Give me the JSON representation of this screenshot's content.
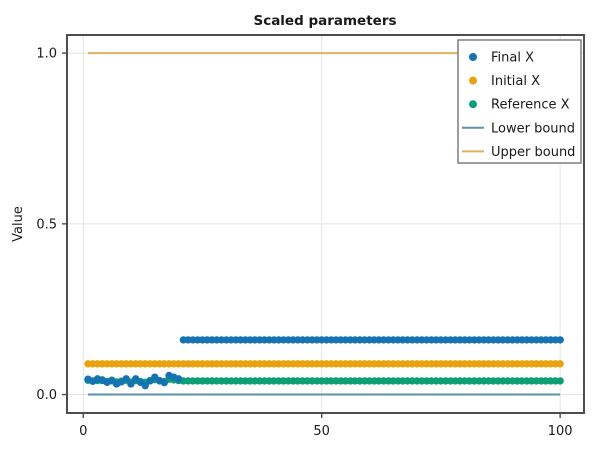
{
  "chart_data": {
    "type": "scatter",
    "title": "Scaled parameters",
    "xlabel": "",
    "ylabel": "Value",
    "xlim": [
      -3.4,
      105.0
    ],
    "ylim": [
      -0.054,
      1.053
    ],
    "x_ticks": [
      0,
      50,
      100
    ],
    "x_tick_labels": [
      "0",
      "50",
      "100"
    ],
    "y_ticks": [
      0,
      0.5,
      1
    ],
    "y_tick_labels": [
      "0.0",
      "0.5",
      "1.0"
    ],
    "grid": true,
    "x_range": {
      "from": 1,
      "to": 100,
      "step": 1
    },
    "series": [
      {
        "name": "Final X",
        "type": "scatter",
        "color": "#1673b1",
        "values_head": [
          0.045,
          0.04,
          0.046,
          0.041,
          0.036,
          0.042,
          0.031,
          0.037,
          0.046,
          0.031,
          0.046,
          0.036,
          0.026,
          0.041,
          0.051,
          0.041,
          0.035,
          0.056,
          0.051,
          0.046
        ],
        "constant_rest": 0.16
      },
      {
        "name": "Initial X",
        "type": "scatter",
        "color": "#eaa10e",
        "constant": 0.09
      },
      {
        "name": "Reference X",
        "type": "scatter",
        "color": "#0a9f75",
        "values_head": [
          0.042,
          0.039,
          0.041,
          0.043,
          0.038,
          0.04,
          0.037,
          0.039,
          0.042,
          0.037,
          0.041,
          0.038,
          0.036,
          0.04,
          0.044,
          0.04,
          0.038,
          0.045,
          0.043,
          0.041
        ],
        "constant_rest": 0.04
      },
      {
        "name": "Lower bound",
        "type": "line",
        "color": "#5b93ad",
        "constant": 0
      },
      {
        "name": "Upper bound",
        "type": "line",
        "color": "#ddb25f",
        "constant": 1
      }
    ],
    "legend": {
      "position": "upper right",
      "entries": [
        {
          "label": "Final X",
          "marker": "dot",
          "color": "#1673b1"
        },
        {
          "label": "Initial X",
          "marker": "dot",
          "color": "#eaa10e"
        },
        {
          "label": "Reference X",
          "marker": "dot",
          "color": "#0a9f75"
        },
        {
          "label": "Lower bound",
          "marker": "line",
          "color": "#5b93ad"
        },
        {
          "label": "Upper bound",
          "marker": "line",
          "color": "#ddb25f"
        }
      ]
    },
    "colors": {
      "grid": "#e4e4e4",
      "spine": "#4d4d4d",
      "tick": "#4d4d4d",
      "text": "#1a1a1a",
      "legend_border": "#7f7f7f",
      "background": "#ffffff"
    }
  }
}
